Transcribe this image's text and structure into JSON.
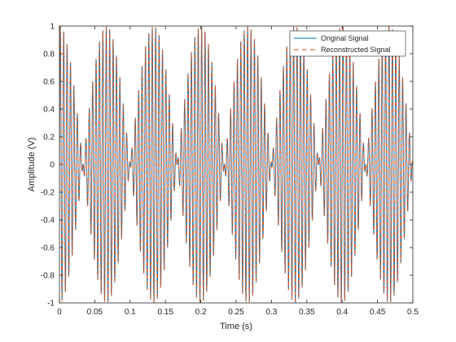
{
  "chart_data": {
    "type": "line",
    "xlabel": "Time (s)",
    "ylabel": "Amplitude (V)",
    "xlim": [
      0,
      0.5
    ],
    "ylim": [
      -1,
      1
    ],
    "x_ticks": [
      0,
      0.05,
      0.1,
      0.15,
      0.2,
      0.25,
      0.3,
      0.35,
      0.4,
      0.45,
      0.5
    ],
    "x_tick_labels": [
      "0",
      "0.05",
      "0.1",
      "0.15",
      "0.2",
      "0.25",
      "0.3",
      "0.35",
      "0.4",
      "0.45",
      "0.5"
    ],
    "y_ticks": [
      -1,
      -0.8,
      -0.6,
      -0.4,
      -0.2,
      0,
      0.2,
      0.4,
      0.6,
      0.8,
      1
    ],
    "y_tick_labels": [
      "-1",
      "-0.8",
      "-0.6",
      "-0.4",
      "-0.2",
      "0",
      "0.2",
      "0.4",
      "0.6",
      "0.8",
      "1"
    ],
    "grid": false,
    "legend_position": "top-right",
    "series": [
      {
        "name": "Original Signal",
        "color": "#0072BD",
        "line_style": "solid",
        "components": [
          {
            "amplitude": 0.5,
            "frequency_hz": 200
          },
          {
            "amplitude": 0.5,
            "frequency_hz": 215
          }
        ],
        "t_start": 0,
        "t_end": 0.5
      },
      {
        "name": "Reconstructed Signal",
        "color": "#D95319",
        "line_style": "dashed",
        "components": [
          {
            "amplitude": 0.5,
            "frequency_hz": 200
          },
          {
            "amplitude": 0.5,
            "frequency_hz": 215
          }
        ],
        "t_start": 0,
        "t_end": 0.5
      }
    ]
  }
}
